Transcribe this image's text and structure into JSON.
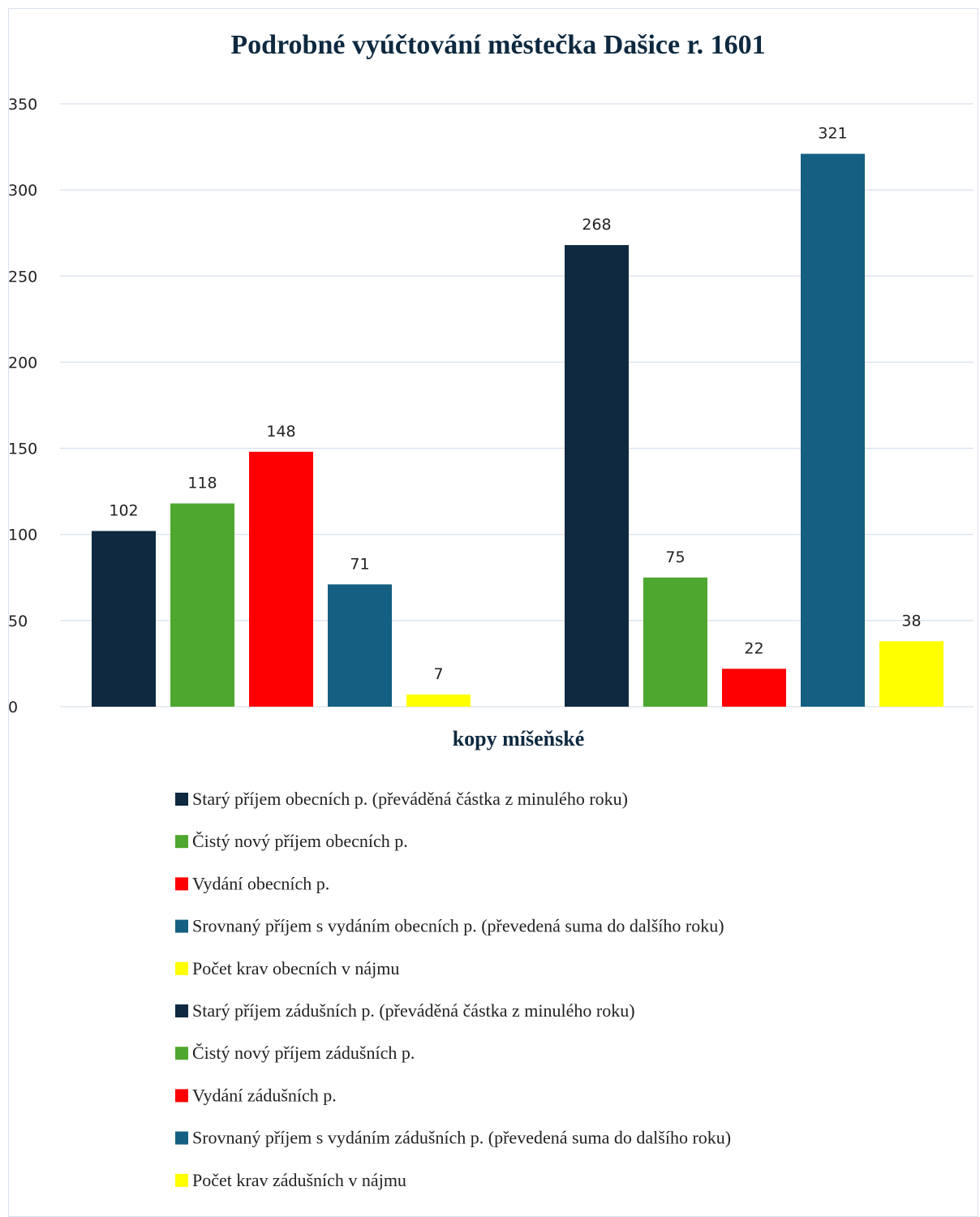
{
  "chart_data": {
    "type": "bar",
    "title": "Podrobné vyúčtování městečka Dašice r. 1601",
    "xlabel": "kopy míšeňské",
    "ylabel": "",
    "ylim": [
      0,
      350
    ],
    "yticks": [
      0,
      50,
      100,
      150,
      200,
      250,
      300,
      350
    ],
    "grid": true,
    "legend_position": "bottom",
    "categories": [
      ""
    ],
    "series": [
      {
        "name": "Starý příjem obecních p. (převáděná částka z minulého roku)",
        "values": [
          102
        ],
        "color": "#0e2940"
      },
      {
        "name": "Čistý nový příjem obecních p.",
        "values": [
          118
        ],
        "color": "#4ea72e"
      },
      {
        "name": "Vydání obecních p.",
        "values": [
          148
        ],
        "color": "#ff0000"
      },
      {
        "name": "Srovnaný příjem s vydáním obecních p. (převedená suma do dalšího roku)",
        "values": [
          71
        ],
        "color": "#156082"
      },
      {
        "name": "Počet krav obecních v nájmu",
        "values": [
          7
        ],
        "color": "#ffff00"
      },
      {
        "name": "Starý příjem zádušních p. (převáděná částka z minulého roku)",
        "values": [
          268
        ],
        "color": "#0e2940"
      },
      {
        "name": "Čistý nový příjem zádušních p.",
        "values": [
          75
        ],
        "color": "#4ea72e"
      },
      {
        "name": "Vydání zádušních p.",
        "values": [
          22
        ],
        "color": "#ff0000"
      },
      {
        "name": "Srovnaný příjem s vydáním zádušních p. (převedená suma do dalšího roku)",
        "values": [
          321
        ],
        "color": "#156082"
      },
      {
        "name": "Počet krav zádušních v nájmu",
        "values": [
          38
        ],
        "color": "#ffff00"
      }
    ]
  }
}
